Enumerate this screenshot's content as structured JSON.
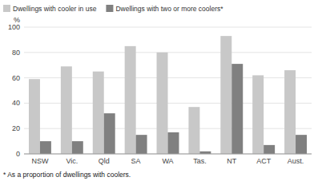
{
  "chart_data": {
    "type": "bar",
    "categories": [
      "NSW",
      "Vic.",
      "Qld",
      "SA",
      "WA",
      "Tas.",
      "NT",
      "ACT",
      "Aust."
    ],
    "series": [
      {
        "name": "Dwellings with cooler in use",
        "color": "#c8c8c8",
        "values": [
          59,
          69,
          65,
          85,
          80,
          37,
          93,
          62,
          66
        ]
      },
      {
        "name": "Dwellings with two or more coolers*",
        "color": "#808080",
        "values": [
          10,
          10,
          32,
          15,
          17,
          2,
          71,
          7,
          15
        ]
      }
    ],
    "ylabel": "%",
    "ylim": [
      0,
      100
    ],
    "yticks": [
      0,
      20,
      40,
      60,
      80,
      100
    ],
    "grid": true,
    "legend": "upper left",
    "annotations": [
      "* As a proportion of dwellings with coolers."
    ]
  }
}
